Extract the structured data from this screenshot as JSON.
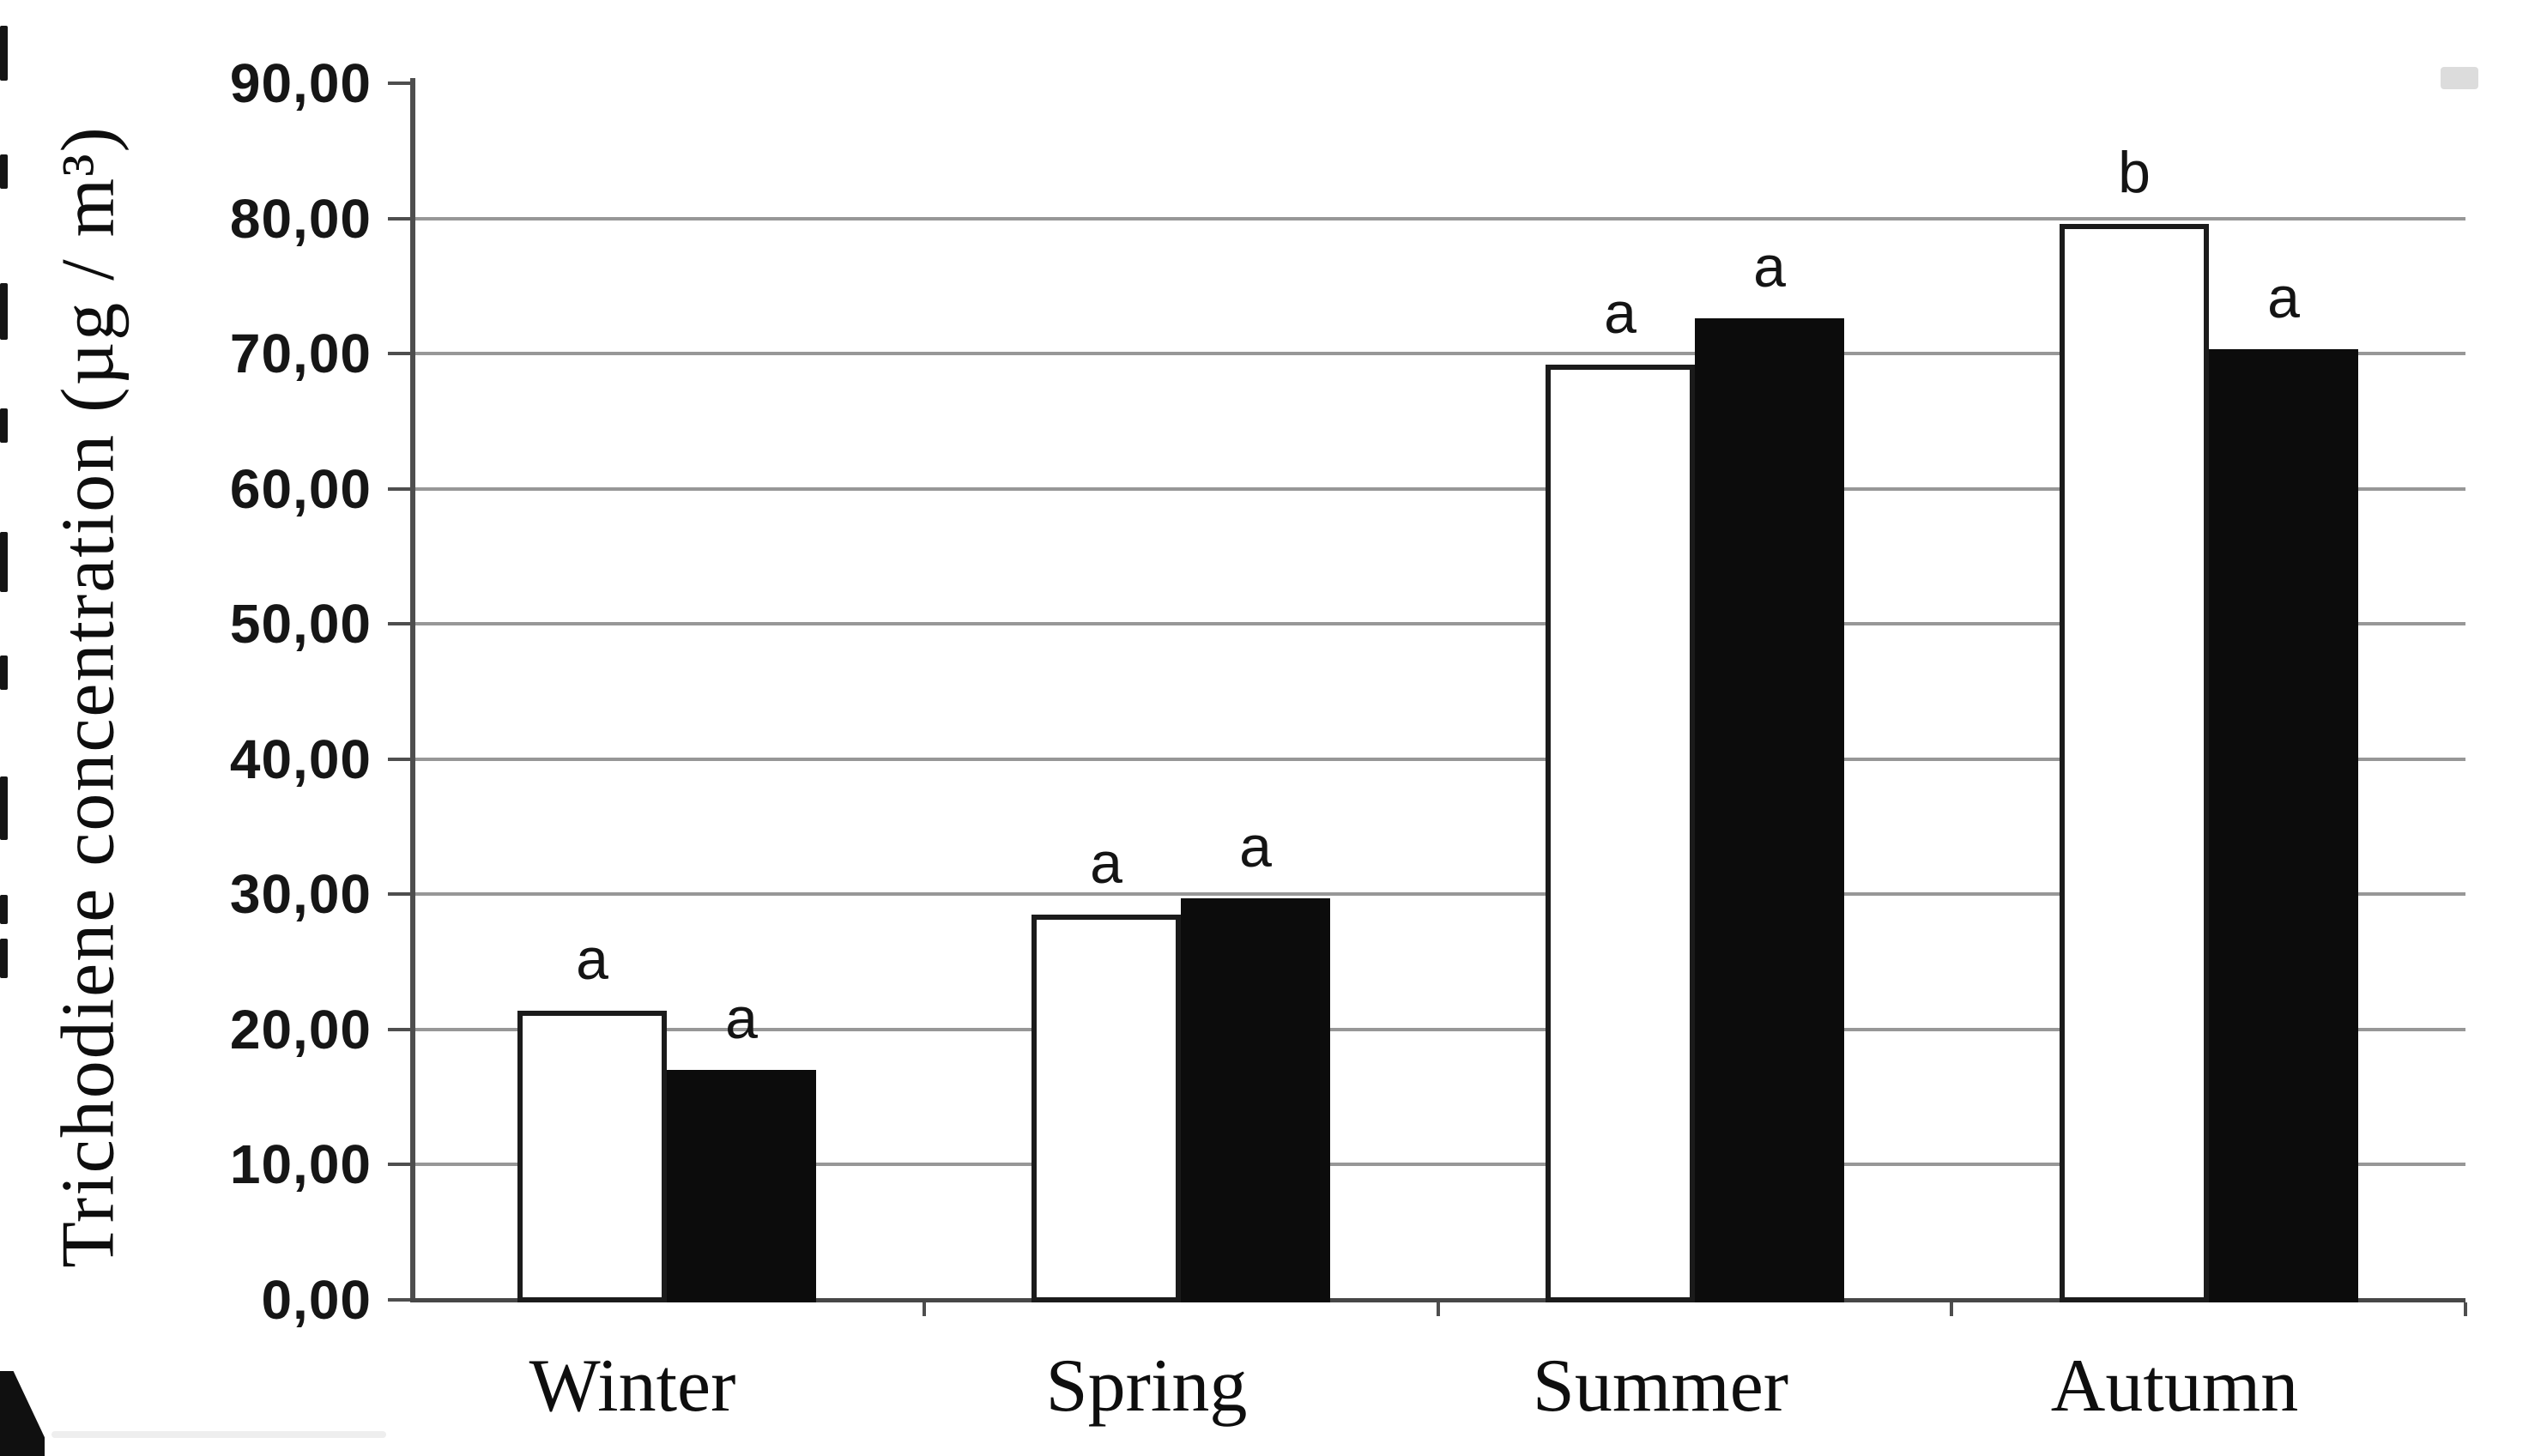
{
  "chart_data": {
    "type": "bar",
    "title": "",
    "categories": [
      "Winter",
      "Spring",
      "Summer",
      "Autumn"
    ],
    "series": [
      {
        "name": "white",
        "fill": "#ffffff",
        "values": [
          21.4,
          28.5,
          69.2,
          79.6
        ]
      },
      {
        "name": "black",
        "fill": "#0c0c0c",
        "values": [
          17.0,
          29.7,
          72.6,
          70.3
        ]
      }
    ],
    "annotations": [
      [
        "a",
        "a"
      ],
      [
        "a",
        "a"
      ],
      [
        "a",
        "a"
      ],
      [
        "b",
        "a"
      ]
    ],
    "xlabel": "",
    "ylabel": "Trichodiene concentration (µg / m³)",
    "ylim": [
      0,
      90
    ],
    "ytick_step": 10,
    "ytick_labels": [
      "0,00",
      "10,00",
      "20,00",
      "30,00",
      "40,00",
      "50,00",
      "60,00",
      "70,00",
      "80,00",
      "90,00"
    ],
    "grid": true,
    "legend": "none",
    "colors": {
      "gridline": "#979797",
      "axis": "#4e4e4e",
      "bar_outline": "#1b1b1b",
      "text": "#111111"
    }
  }
}
